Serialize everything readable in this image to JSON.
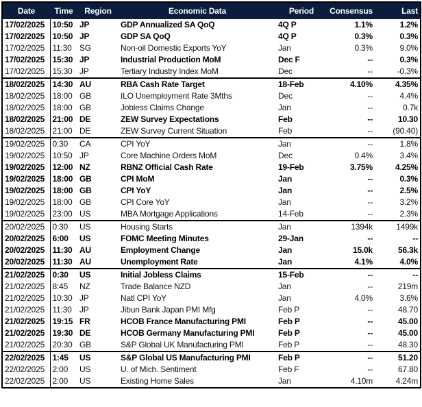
{
  "table": {
    "columns": [
      "Date",
      "Time",
      "Region",
      "Economic Data",
      "Period",
      "Consensus",
      "Last"
    ],
    "rows": [
      {
        "bold": true,
        "cells": [
          "17/02/2025",
          "10:50",
          "JP",
          "GDP Annualized SA QoQ",
          "4Q P",
          "1.1%",
          "1.2%"
        ]
      },
      {
        "bold": true,
        "cells": [
          "17/02/2025",
          "10:50",
          "JP",
          "GDP SA QoQ",
          "4Q P",
          "0.3%",
          "0.3%"
        ]
      },
      {
        "bold": false,
        "cells": [
          "17/02/2025",
          "11:30",
          "SG",
          "Non-oil Domestic Exports YoY",
          "Jan",
          "0.3%",
          "9.0%"
        ]
      },
      {
        "bold": true,
        "cells": [
          "17/02/2025",
          "15:30",
          "JP",
          "Industrial Production MoM",
          "Dec F",
          "--",
          "0.3%"
        ]
      },
      {
        "bold": false,
        "cells": [
          "17/02/2025",
          "15:30",
          "JP",
          "Tertiary Industry Index MoM",
          "Dec",
          "--",
          "-0.3%"
        ]
      },
      {
        "bold": true,
        "cells": [
          "18/02/2025",
          "14:30",
          "AU",
          "RBA Cash Rate Target",
          "18-Feb",
          "4.10%",
          "4.35%"
        ]
      },
      {
        "bold": false,
        "cells": [
          "18/02/2025",
          "18:00",
          "GB",
          "ILO Unemployment Rate 3Mths",
          "Dec",
          "--",
          "4.4%"
        ]
      },
      {
        "bold": false,
        "cells": [
          "18/02/2025",
          "18:00",
          "GB",
          "Jobless Claims Change",
          "Jan",
          "--",
          "0.7k"
        ]
      },
      {
        "bold": true,
        "cells": [
          "18/02/2025",
          "21:00",
          "DE",
          "ZEW Survey Expectations",
          "Feb",
          "--",
          "10.30"
        ]
      },
      {
        "bold": false,
        "cells": [
          "18/02/2025",
          "21:00",
          "DE",
          "ZEW Survey Current Situation",
          "Feb",
          "--",
          "(90.40)"
        ]
      },
      {
        "bold": false,
        "cells": [
          "19/02/2025",
          "0:30",
          "CA",
          "CPI YoY",
          "Jan",
          "--",
          "1.8%"
        ]
      },
      {
        "bold": false,
        "cells": [
          "19/02/2025",
          "10:50",
          "JP",
          "Core Machine Orders MoM",
          "Dec",
          "0.4%",
          "3.4%"
        ]
      },
      {
        "bold": true,
        "cells": [
          "19/02/2025",
          "12:00",
          "NZ",
          "RBNZ Official Cash Rate",
          "19-Feb",
          "3.75%",
          "4.25%"
        ]
      },
      {
        "bold": true,
        "cells": [
          "19/02/2025",
          "18:00",
          "GB",
          "CPI MoM",
          "Jan",
          "--",
          "0.3%"
        ]
      },
      {
        "bold": true,
        "cells": [
          "19/02/2025",
          "18:00",
          "GB",
          "CPI YoY",
          "Jan",
          "--",
          "2.5%"
        ]
      },
      {
        "bold": false,
        "cells": [
          "19/02/2025",
          "18:00",
          "GB",
          "CPI Core YoY",
          "Jan",
          "--",
          "3.2%"
        ]
      },
      {
        "bold": false,
        "cells": [
          "19/02/2025",
          "23:00",
          "US",
          "MBA Mortgage Applications",
          "14-Feb",
          "--",
          "2.3%"
        ]
      },
      {
        "bold": false,
        "cells": [
          "20/02/2025",
          "0:30",
          "US",
          "Housing Starts",
          "Jan",
          "1394k",
          "1499k"
        ]
      },
      {
        "bold": true,
        "cells": [
          "20/02/2025",
          "6:00",
          "US",
          "FOMC Meeting Minutes",
          "29-Jan",
          "--",
          "--"
        ]
      },
      {
        "bold": true,
        "cells": [
          "20/02/2025",
          "11:30",
          "AU",
          "Employment Change",
          "Jan",
          "15.0k",
          "56.3k"
        ]
      },
      {
        "bold": true,
        "cells": [
          "20/02/2025",
          "11:30",
          "AU",
          "Unemployment Rate",
          "Jan",
          "4.1%",
          "4.0%"
        ]
      },
      {
        "bold": true,
        "cells": [
          "21/02/2025",
          "0:30",
          "US",
          "Initial Jobless Claims",
          "15-Feb",
          "--",
          "--"
        ]
      },
      {
        "bold": false,
        "cells": [
          "21/02/2025",
          "8:45",
          "NZ",
          "Trade Balance NZD",
          "Jan",
          "--",
          "219m"
        ]
      },
      {
        "bold": false,
        "cells": [
          "21/02/2025",
          "10:30",
          "JP",
          "Natl CPI YoY",
          "Jan",
          "4.0%",
          "3.6%"
        ]
      },
      {
        "bold": false,
        "cells": [
          "21/02/2025",
          "11:30",
          "JP",
          "Jibun Bank Japan PMI Mfg",
          "Feb P",
          "--",
          "48.70"
        ]
      },
      {
        "bold": true,
        "cells": [
          "21/02/2025",
          "19:15",
          "FR",
          "HCOB France Manufacturing PMI",
          "Feb P",
          "--",
          "45.00"
        ]
      },
      {
        "bold": true,
        "cells": [
          "21/02/2025",
          "19:30",
          "DE",
          "HCOB Germany Manufacturing PMI",
          "Feb P",
          "--",
          "45.00"
        ]
      },
      {
        "bold": false,
        "cells": [
          "21/02/2025",
          "20:30",
          "GB",
          "S&P Global UK Manufacturing PMI",
          "Feb P",
          "--",
          "48.30"
        ]
      },
      {
        "bold": true,
        "cells": [
          "22/02/2025",
          "1:45",
          "US",
          "S&P Global US Manufacturing PMI",
          "Feb P",
          "--",
          "51.20"
        ]
      },
      {
        "bold": false,
        "cells": [
          "22/02/2025",
          "2:00",
          "US",
          "U. of Mich. Sentiment",
          "Feb F",
          "--",
          "67.80"
        ]
      },
      {
        "bold": false,
        "cells": [
          "22/02/2025",
          "2:00",
          "US",
          "Existing Home Sales",
          "Jan",
          "4.10m",
          "4.24m"
        ]
      }
    ]
  }
}
